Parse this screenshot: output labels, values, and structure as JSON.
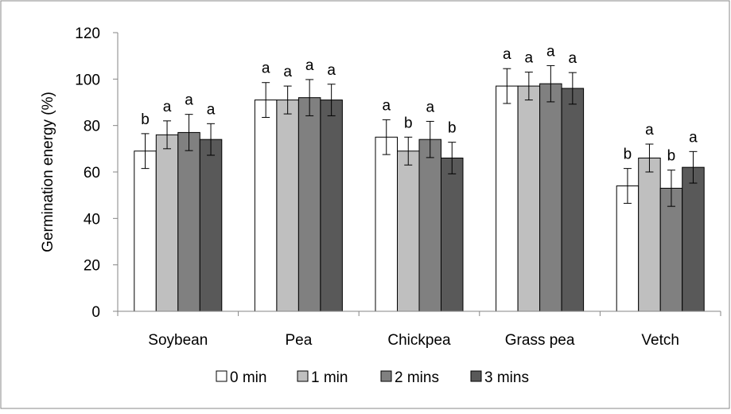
{
  "chart_data": {
    "type": "bar",
    "title": "",
    "xlabel": "",
    "ylabel": "Germination energy (%)",
    "ylim": [
      0,
      120
    ],
    "yticks": [
      0,
      20,
      40,
      60,
      80,
      100,
      120
    ],
    "grid": false,
    "legend_position": "bottom",
    "categories": [
      "Soybean",
      "Pea",
      "Chickpea",
      "Grass pea",
      "Vetch"
    ],
    "series": [
      {
        "name": "0 min",
        "color": "#ffffff",
        "values": [
          69,
          91,
          75,
          97,
          54
        ],
        "errors": [
          7.5,
          7.5,
          7.5,
          7.5,
          7.5
        ],
        "letters": [
          "b",
          "a",
          "a",
          "a",
          "b"
        ]
      },
      {
        "name": "1 min",
        "color": "#bfbfbf",
        "values": [
          76,
          91,
          69,
          97,
          66
        ],
        "errors": [
          6,
          6,
          6,
          6,
          6
        ],
        "letters": [
          "a",
          "a",
          "b",
          "a",
          "a"
        ]
      },
      {
        "name": "2 mins",
        "color": "#808080",
        "values": [
          77,
          92,
          74,
          98,
          53
        ],
        "errors": [
          7.8,
          7.8,
          7.8,
          7.8,
          7.8
        ],
        "letters": [
          "a",
          "a",
          "a",
          "a",
          "b"
        ]
      },
      {
        "name": "3 mins",
        "color": "#595959",
        "values": [
          74,
          91,
          66,
          96,
          62
        ],
        "errors": [
          6.8,
          6.8,
          6.8,
          6.8,
          6.8
        ],
        "letters": [
          "a",
          "a",
          "b",
          "a",
          "a"
        ]
      }
    ]
  }
}
